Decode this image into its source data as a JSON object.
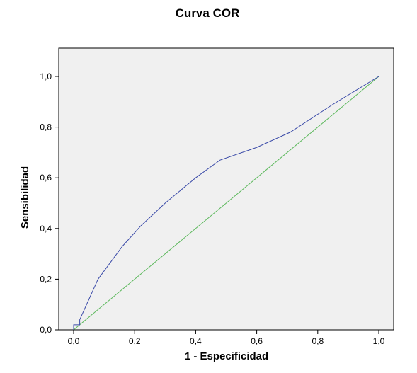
{
  "chart_data": {
    "type": "line",
    "title": "Curva COR",
    "xlabel": "1 - Especificidad",
    "ylabel": "Sensibilidad",
    "xlim": [
      0.0,
      1.0
    ],
    "ylim": [
      0.0,
      1.0
    ],
    "x_ticks": [
      {
        "value": 0.0,
        "label": "0,0"
      },
      {
        "value": 0.2,
        "label": "0,2"
      },
      {
        "value": 0.4,
        "label": "0,4"
      },
      {
        "value": 0.6,
        "label": "0,6"
      },
      {
        "value": 0.8,
        "label": "0,8"
      },
      {
        "value": 1.0,
        "label": "1,0"
      }
    ],
    "y_ticks": [
      {
        "value": 0.0,
        "label": "0,0"
      },
      {
        "value": 0.2,
        "label": "0,2"
      },
      {
        "value": 0.4,
        "label": "0,4"
      },
      {
        "value": 0.6,
        "label": "0,6"
      },
      {
        "value": 0.8,
        "label": "0,8"
      },
      {
        "value": 1.0,
        "label": "1,0"
      }
    ],
    "grid": false,
    "plot_background": "#f0f0f0",
    "series": [
      {
        "color": "#3a4aa8",
        "x": [
          0.0,
          0.0,
          0.02,
          0.02,
          0.08,
          0.16,
          0.22,
          0.3,
          0.4,
          0.48,
          0.6,
          0.71,
          0.85,
          1.0
        ],
        "y": [
          0.0,
          0.02,
          0.02,
          0.04,
          0.2,
          0.33,
          0.41,
          0.5,
          0.6,
          0.67,
          0.72,
          0.78,
          0.89,
          1.0
        ]
      },
      {
        "color": "#5cb85c",
        "x": [
          0.0,
          1.0
        ],
        "y": [
          0.0,
          1.0
        ]
      }
    ]
  }
}
